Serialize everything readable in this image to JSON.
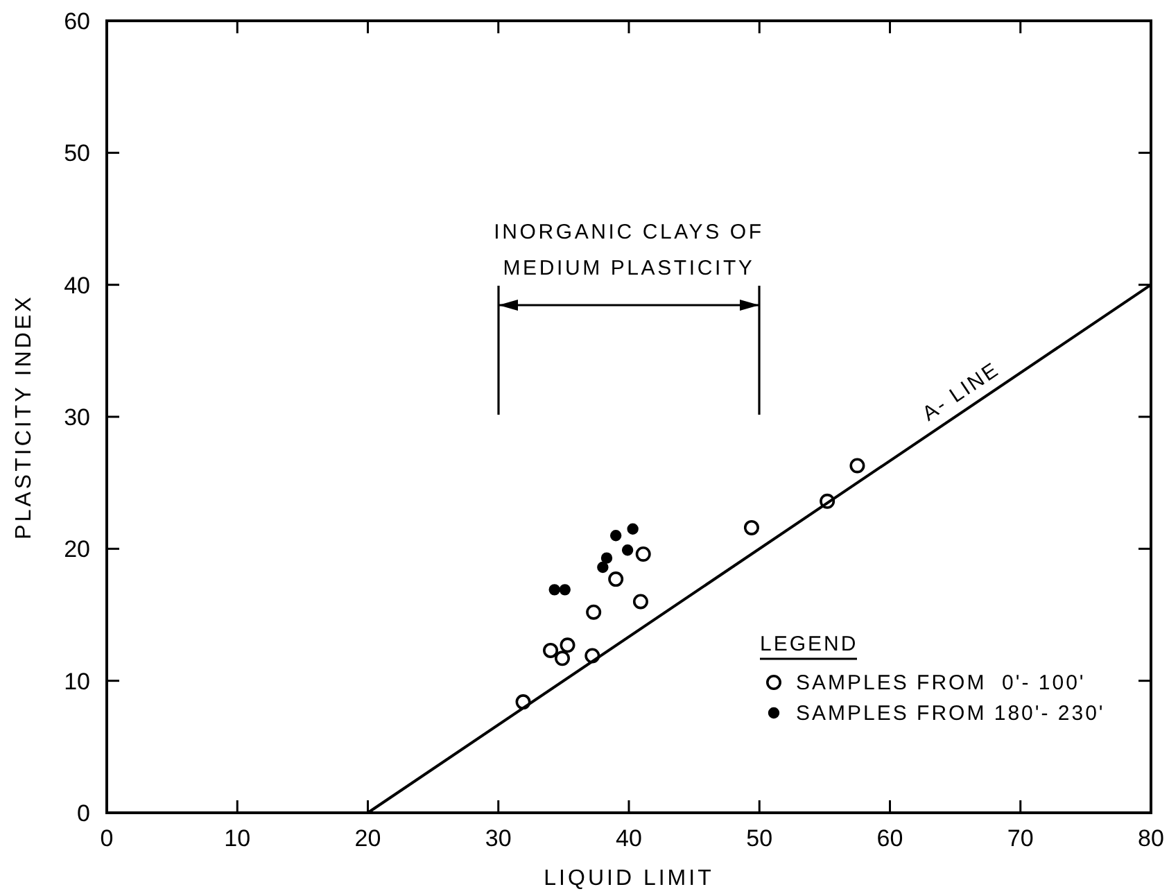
{
  "chart_data": {
    "type": "scatter",
    "xlabel": "LIQUID LIMIT",
    "ylabel": "PLASTICITY INDEX",
    "xlim": [
      0,
      80
    ],
    "ylim": [
      0,
      60
    ],
    "xticks": [
      0,
      10,
      20,
      30,
      40,
      50,
      60,
      70,
      80
    ],
    "yticks": [
      0,
      10,
      20,
      30,
      40,
      50,
      60
    ],
    "legend": "bottom right",
    "legend_title": "LEGEND",
    "grid": false,
    "annotations": [
      "INORGANIC CLAYS OF MEDIUM PLASTICITY"
    ],
    "series": [
      {
        "name": "SAMPLES FROM  0'- 100'",
        "marker": "circle-open",
        "color": "#000000",
        "x": [
          31.9,
          34.0,
          34.9,
          35.3,
          37.2,
          37.3,
          39.0,
          40.9,
          41.1,
          49.4,
          55.2,
          57.5
        ],
        "values": [
          8.4,
          12.3,
          11.7,
          12.7,
          11.9,
          15.2,
          17.7,
          16.0,
          19.6,
          21.6,
          23.6,
          26.3
        ]
      },
      {
        "name": "SAMPLES FROM 180'- 230'",
        "marker": "circle",
        "color": "#000000",
        "x": [
          34.3,
          35.1,
          38.0,
          38.3,
          39.0,
          39.9,
          40.3
        ],
        "values": [
          16.9,
          16.9,
          18.6,
          19.3,
          21.0,
          19.9,
          21.5
        ]
      },
      {
        "name": "A- LINE",
        "type": "line",
        "marker": "none",
        "color": "#000000",
        "x": [
          20,
          80
        ],
        "values": [
          0,
          40
        ]
      }
    ]
  }
}
